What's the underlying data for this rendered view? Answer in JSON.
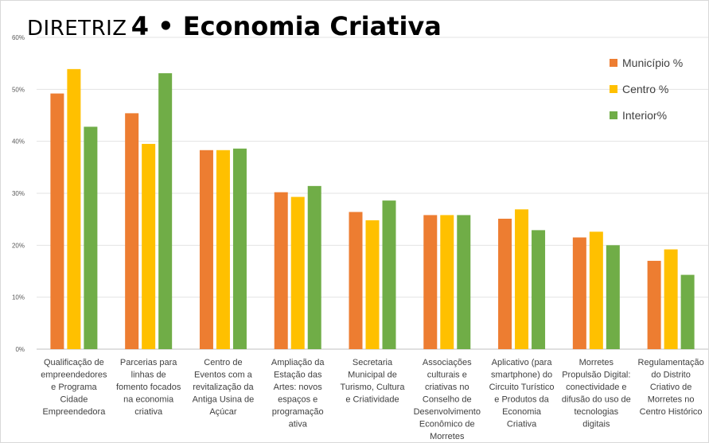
{
  "title_prefix": "DIRETRIZ",
  "title_main": "4 • Economia Criativa",
  "chart_data": {
    "type": "bar",
    "ylim": [
      0,
      60
    ],
    "y_ticks": [
      "0%",
      "10%",
      "20%",
      "30%",
      "40%",
      "50%",
      "60%"
    ],
    "grid": true,
    "legend_position": "top-right",
    "categories": [
      [
        "Qualificação de",
        "empreendedores",
        "e Programa",
        "Cidade",
        "Empreendedora"
      ],
      [
        "Parcerias para",
        "linhas de",
        "fomento focados",
        "na economia",
        "criativa"
      ],
      [
        "Centro de",
        "Eventos com a",
        "revitalização da",
        "Antiga Usina de",
        "Açúcar"
      ],
      [
        "Ampliação da",
        "Estação das",
        "Artes: novos",
        "espaços e",
        "programação",
        "ativa"
      ],
      [
        "Secretaria",
        "Municipal de",
        "Turismo, Cultura",
        "e Criatividade"
      ],
      [
        "Associações",
        "culturais e",
        "criativas no",
        "Conselho de",
        "Desenvolvimento",
        "Econômico de",
        "Morretes"
      ],
      [
        "Aplicativo (para",
        "smartphone) do",
        "Circuito Turístico",
        "e Produtos da",
        "Economia",
        "Criativa"
      ],
      [
        "Morretes",
        "Propulsão Digital:",
        "conectividade e",
        "difusão do uso de",
        "tecnologias",
        "digitais"
      ],
      [
        "Regulamentação",
        "do Distrito",
        "Criativo de",
        "Morretes no",
        "Centro Histórico"
      ]
    ],
    "series": [
      {
        "name": "Município %",
        "color": "#ed7d31",
        "values": [
          49.2,
          45.4,
          38.3,
          30.2,
          26.4,
          25.8,
          25.1,
          21.5,
          17.0
        ]
      },
      {
        "name": "Centro %",
        "color": "#ffc000",
        "values": [
          53.9,
          39.5,
          38.3,
          29.3,
          24.8,
          25.8,
          26.9,
          22.6,
          19.2
        ]
      },
      {
        "name": "Interior%",
        "color": "#70ad47",
        "values": [
          42.8,
          53.1,
          38.6,
          31.4,
          28.6,
          25.8,
          22.9,
          20.0,
          14.3
        ]
      }
    ]
  }
}
